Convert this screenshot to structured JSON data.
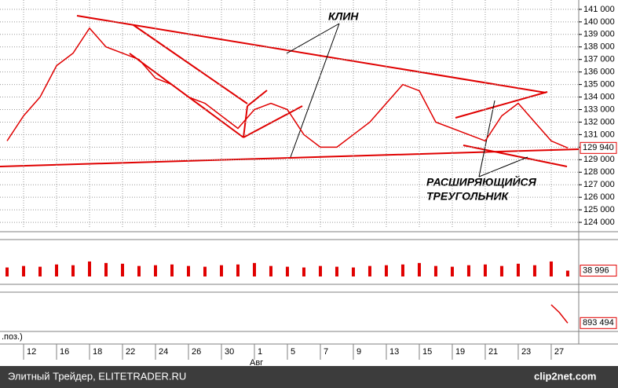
{
  "chart_data": [
    {
      "type": "line",
      "color": "#e00000",
      "grid": true,
      "x": [
        -1,
        0,
        1,
        2,
        3,
        4,
        5,
        6,
        7,
        8,
        9,
        10,
        11,
        12,
        13,
        14,
        15,
        16,
        17,
        18,
        19,
        20,
        21,
        22,
        23,
        24,
        25,
        26,
        27,
        28,
        29,
        30,
        31,
        32,
        33
      ],
      "values": [
        130500,
        132500,
        134000,
        136500,
        137500,
        139500,
        138000,
        137500,
        137000,
        135500,
        135000,
        134000,
        133500,
        132500,
        131500,
        133000,
        133500,
        133000,
        131000,
        130000,
        130000,
        131000,
        132000,
        133500,
        135000,
        134500,
        132000,
        131500,
        131000,
        130500,
        132500,
        133500,
        132000,
        130500,
        129940
      ],
      "last_label": "129 940",
      "xlim": [
        -1.43,
        33.67
      ],
      "xticks": [
        {
          "value": 0,
          "label": "12"
        },
        {
          "value": 2,
          "label": "16"
        },
        {
          "value": 4,
          "label": "18"
        },
        {
          "value": 6,
          "label": "22"
        },
        {
          "value": 8,
          "label": "24"
        },
        {
          "value": 10,
          "label": "26"
        },
        {
          "value": 12,
          "label": "30"
        },
        {
          "value": 14,
          "label": "1"
        },
        {
          "value": 16,
          "label": "5"
        },
        {
          "value": 18,
          "label": "7"
        },
        {
          "value": 20,
          "label": "9"
        },
        {
          "value": 22,
          "label": "13"
        },
        {
          "value": 24,
          "label": "15"
        },
        {
          "value": 26,
          "label": "19"
        },
        {
          "value": 28,
          "label": "21"
        },
        {
          "value": 30,
          "label": "23"
        },
        {
          "value": 32,
          "label": "27"
        }
      ],
      "x_month_label": "Авг",
      "ylim": [
        123566,
        141558
      ],
      "yticks": [
        {
          "value": 124000,
          "label": "124 000"
        },
        {
          "value": 125000,
          "label": "125 000"
        },
        {
          "value": 126000,
          "label": "126 000"
        },
        {
          "value": 127000,
          "label": "127 000"
        },
        {
          "value": 128000,
          "label": "128 000"
        },
        {
          "value": 129000,
          "label": "129 000"
        },
        {
          "value": 130000,
          "label": "130 000"
        },
        {
          "value": 131000,
          "label": "131 000"
        },
        {
          "value": 132000,
          "label": "132 000"
        },
        {
          "value": 133000,
          "label": "133 000"
        },
        {
          "value": 134000,
          "label": "134 000"
        },
        {
          "value": 135000,
          "label": "135 000"
        },
        {
          "value": 136000,
          "label": "136 000"
        },
        {
          "value": 137000,
          "label": "137 000"
        },
        {
          "value": 138000,
          "label": "138 000"
        },
        {
          "value": 139000,
          "label": "139 000"
        },
        {
          "value": 140000,
          "label": "140 000"
        },
        {
          "value": 141000,
          "label": "141 000"
        }
      ],
      "annotations": [
        "КЛИН",
        "РАСШИРЯЮЩИЙСЯ",
        "ТРЕУГОЛЬНИК"
      ]
    },
    {
      "type": "bar",
      "color": "#e00000",
      "x": [
        -1,
        0,
        1,
        2,
        3,
        4,
        5,
        6,
        7,
        8,
        9,
        10,
        11,
        12,
        13,
        14,
        15,
        16,
        17,
        18,
        19,
        20,
        21,
        22,
        23,
        24,
        25,
        26,
        27,
        28,
        29,
        30,
        31,
        32,
        33
      ],
      "values": [
        60000,
        70000,
        65000,
        80000,
        75000,
        100000,
        90000,
        85000,
        70000,
        75000,
        80000,
        70000,
        65000,
        75000,
        80000,
        90000,
        70000,
        65000,
        60000,
        70000,
        65000,
        60000,
        70000,
        75000,
        80000,
        90000,
        70000,
        65000,
        75000,
        80000,
        70000,
        85000,
        75000,
        100000,
        38996
      ],
      "last_label": "38 996",
      "ylim": [
        0,
        220000
      ]
    },
    {
      "type": "line",
      "color": "#e00000",
      "label": ".поз.)",
      "x": [
        32,
        32.5,
        33
      ],
      "values": [
        1010000,
        960000,
        893494
      ],
      "last_label": "893 494",
      "ylim": [
        850000,
        1060000
      ]
    }
  ],
  "footer": {
    "text": "Элитный Трейдер, ELITETRADER.RU",
    "logo": "clip2net.com"
  }
}
